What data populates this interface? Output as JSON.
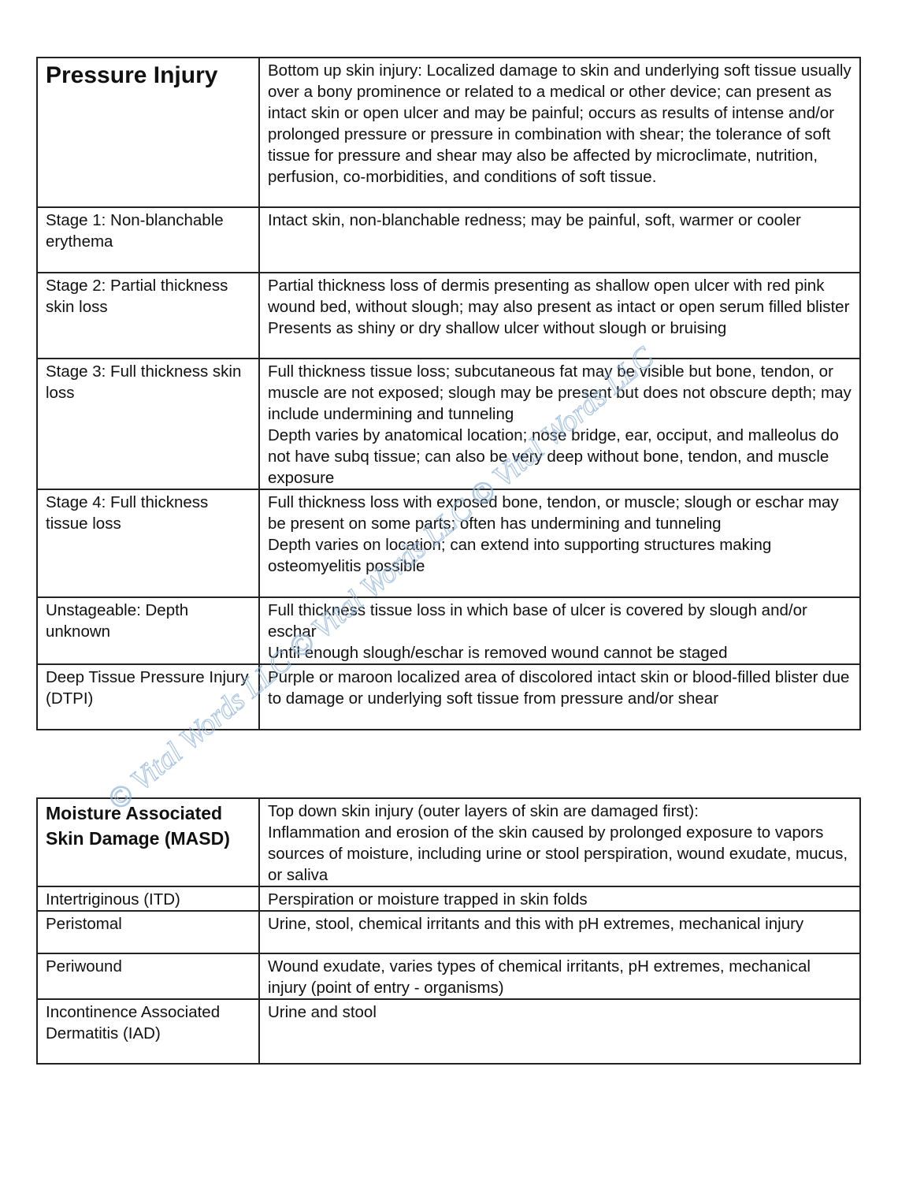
{
  "pressure_table": {
    "header": {
      "term": "Pressure Injury",
      "definition": [
        "Bottom up skin injury: Localized damage to skin and underlying soft tissue usually over a bony prominence or related to a medical or other device; can present as intact skin or open ulcer and may be painful; occurs as results of intense and/or prolonged pressure or pressure in combination with shear; the tolerance of soft tissue for pressure and shear may also be affected by microclimate, nutrition, perfusion, co-morbidities, and conditions of soft tissue."
      ]
    },
    "rows": [
      {
        "term": "Stage 1: Non-blanchable erythema",
        "definition": [
          "Intact skin, non-blanchable redness; may be painful, soft, warmer or cooler"
        ]
      },
      {
        "term": "Stage 2: Partial thickness skin loss",
        "definition": [
          "Partial thickness loss of dermis presenting as shallow open ulcer with red pink wound bed, without slough; may also present as intact or open serum filled blister",
          "Presents as shiny or dry shallow ulcer without slough or bruising"
        ]
      },
      {
        "term": "Stage 3: Full thickness skin loss",
        "definition": [
          "Full thickness tissue loss; subcutaneous fat may be visible but bone, tendon, or muscle are not exposed; slough may be present but does not obscure depth; may include undermining and tunneling",
          "Depth varies by anatomical location; nose bridge, ear, occiput, and malleolus do not have subq tissue; can also be very deep without bone, tendon, and muscle exposure"
        ]
      },
      {
        "term": "Stage 4: Full thickness tissue loss",
        "definition": [
          "Full thickness loss with exposed bone, tendon, or muscle; slough or eschar may be present on some parts; often has undermining and tunneling",
          "Depth varies on location; can extend into supporting structures making osteomyelitis possible"
        ]
      },
      {
        "term": "Unstageable: Depth unknown",
        "definition": [
          "Full thickness tissue loss in which base of ulcer is covered by slough and/or eschar",
          "Until enough slough/eschar is removed wound cannot be staged"
        ]
      },
      {
        "term": "Deep Tissue Pressure Injury (DTPI)",
        "definition": [
          "Purple or maroon localized area of discolored intact skin or blood-filled blister due to damage or underlying soft tissue from pressure and/or shear"
        ]
      }
    ]
  },
  "moisture_table": {
    "header": {
      "term": "Moisture Associated Skin Damage (MASD)",
      "definition": [
        "Top down skin injury (outer layers of skin are damaged first):",
        "Inflammation and erosion of the skin caused by prolonged exposure to vapors sources of moisture, including urine or stool perspiration, wound exudate, mucus, or saliva"
      ]
    },
    "rows": [
      {
        "term": "Intertriginous (ITD)",
        "definition": [
          "Perspiration or moisture trapped in skin folds"
        ]
      },
      {
        "term": "Peristomal",
        "definition": [
          "Urine, stool, chemical irritants and this with pH extremes, mechanical injury"
        ]
      },
      {
        "term": "Periwound",
        "definition": [
          "Wound exudate, varies types of chemical irritants, pH extremes, mechanical injury (point of entry - organisms)"
        ]
      },
      {
        "term": "Incontinence Associated Dermatitis (IAD)",
        "definition": [
          "Urine and stool"
        ]
      }
    ]
  },
  "watermark": {
    "text": "© Vital Words LLC",
    "color": "#8fb4d8"
  }
}
